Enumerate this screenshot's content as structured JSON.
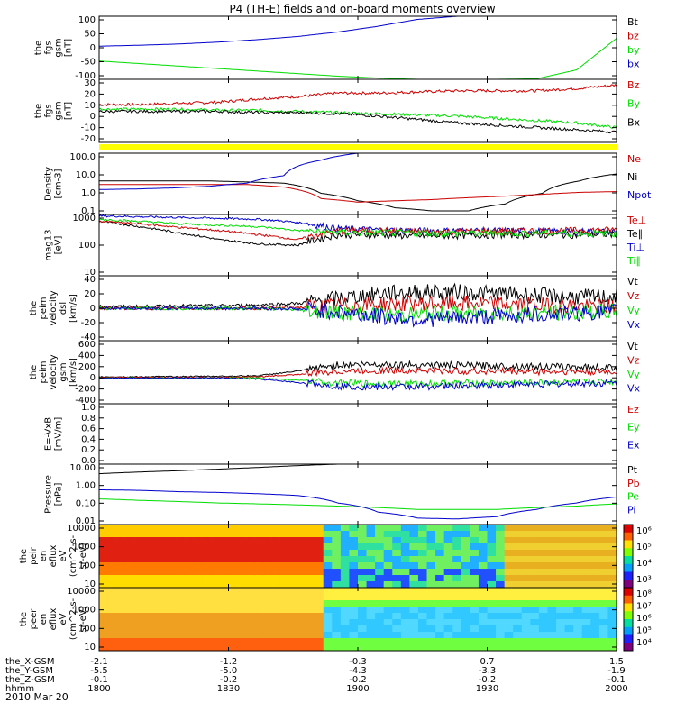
{
  "title": "P4 (TH-E) fields and on-board moments overview",
  "date": "2010 Mar 20",
  "colors": {
    "black": "#000000",
    "red": "#cc0000",
    "green": "#00dd00",
    "blue": "#0000cc",
    "yellow": "#ffff00"
  },
  "chart_data": [
    {
      "type": "line",
      "panel": "fgs-mag",
      "ylabel": [
        "the",
        "fgs",
        "gsm",
        "[nT]"
      ],
      "yticks": [
        "100",
        "50",
        "0",
        "-50",
        "-100"
      ],
      "ylim": [
        -100,
        100
      ],
      "legend": [
        "Bt",
        "bz",
        "by",
        "bx"
      ],
      "legend_colors": [
        "black",
        "red",
        "green",
        "blue"
      ],
      "series": [
        {
          "name": "bx",
          "color": "blue",
          "values": [
            5,
            8,
            12,
            18,
            26,
            36,
            50,
            68,
            90,
            100,
            100,
            100,
            100,
            100
          ]
        },
        {
          "name": "by",
          "color": "green",
          "values": [
            -42,
            -50,
            -58,
            -66,
            -74,
            -82,
            -90,
            -96,
            -100,
            -100,
            -100,
            -98,
            -70,
            30
          ]
        }
      ]
    },
    {
      "type": "line",
      "panel": "fgs-mag-zoom",
      "ylabel": [
        "the",
        "fgs",
        "gsm",
        "[nT]"
      ],
      "yticks": [
        "30",
        "20",
        "10",
        "0",
        "-10",
        "-20"
      ],
      "ylim": [
        -25,
        30
      ],
      "legend": [
        "Bz",
        "By",
        "Bx"
      ],
      "legend_colors": [
        "red",
        "green",
        "black"
      ],
      "series": [
        {
          "name": "Bz",
          "color": "red",
          "values": [
            8,
            8,
            9,
            10,
            13,
            15,
            18,
            18,
            19,
            20,
            20,
            20,
            22,
            25
          ]
        },
        {
          "name": "By",
          "color": "green",
          "values": [
            4,
            4,
            4,
            3,
            3,
            2,
            1,
            0,
            -1,
            -2,
            -4,
            -6,
            -8,
            -12
          ]
        },
        {
          "name": "Bx",
          "color": "black",
          "values": [
            2,
            2,
            2,
            2,
            1,
            1,
            0,
            -2,
            -5,
            -8,
            -10,
            -12,
            -14,
            -16
          ]
        }
      ]
    },
    {
      "type": "line",
      "panel": "density",
      "ylabel": [
        "Density",
        "[cm-3]"
      ],
      "yticks": [
        "100.0",
        "10.0",
        "1.0",
        "0.1"
      ],
      "scale": "log",
      "ylim": [
        0.05,
        150
      ],
      "legend": [
        "Ne",
        "Ni",
        "Npot"
      ],
      "legend_colors": [
        "red",
        "black",
        "blue"
      ],
      "series": [
        {
          "name": "Ni",
          "color": "black",
          "values": [
            4,
            4,
            4,
            4,
            3.5,
            3,
            0.8,
            0.3,
            0.12,
            0.08,
            0.08,
            0.2,
            0.8,
            4,
            10
          ]
        },
        {
          "name": "Ne",
          "color": "red",
          "values": [
            2.5,
            2.5,
            2.5,
            2.5,
            2.5,
            1.8,
            0.4,
            0.25,
            0.3,
            0.35,
            0.45,
            0.55,
            0.7,
            0.9,
            1
          ]
        },
        {
          "name": "Npot",
          "color": "blue",
          "values": [
            1.3,
            1.4,
            1.6,
            2,
            3,
            8,
            60,
            150,
            150,
            150,
            150,
            150,
            150,
            150,
            150
          ]
        }
      ]
    },
    {
      "type": "line",
      "panel": "temperature",
      "ylabel": [
        "mag13",
        "[eV]"
      ],
      "yticks": [
        "1000",
        "100",
        "10"
      ],
      "scale": "log",
      "ylim": [
        10,
        1000
      ],
      "legend": [
        "Te⊥",
        "Te∥",
        "Ti⊥",
        "Ti∥"
      ],
      "legend_colors": [
        "red",
        "black",
        "blue",
        "green"
      ],
      "series": [
        {
          "name": "Ti⊥",
          "color": "blue",
          "values": [
            900,
            850,
            800,
            750,
            700,
            550,
            350,
            320,
            300,
            300,
            300,
            290,
            280,
            280
          ]
        },
        {
          "name": "Te∥",
          "color": "black",
          "values": [
            600,
            400,
            250,
            150,
            110,
            100,
            220,
            220,
            200,
            210,
            220,
            220,
            220,
            230
          ]
        },
        {
          "name": "Te⊥",
          "color": "red",
          "values": [
            600,
            500,
            380,
            300,
            220,
            150,
            300,
            300,
            280,
            280,
            290,
            300,
            310,
            320
          ]
        },
        {
          "name": "Ti∥",
          "color": "green",
          "values": [
            700,
            600,
            500,
            450,
            400,
            300,
            260,
            260,
            250,
            250,
            250,
            250,
            250,
            240
          ]
        }
      ]
    },
    {
      "type": "line",
      "panel": "velocity-dsl",
      "ylabel": [
        "the",
        "peim",
        "velocity",
        "dsl",
        "[km/s]"
      ],
      "yticks": [
        "40",
        "20",
        "0",
        "-20",
        "-40"
      ],
      "ylim": [
        -40,
        40
      ],
      "legend": [
        "Vt",
        "Vz",
        "Vy",
        "Vx"
      ],
      "legend_colors": [
        "black",
        "red",
        "green",
        "blue"
      ],
      "series": [
        {
          "name": "Vt",
          "color": "black",
          "values": [
            2,
            2,
            3,
            3,
            4,
            6,
            12,
            18,
            20,
            20,
            18,
            16,
            14,
            14
          ]
        },
        {
          "name": "Vz",
          "color": "red",
          "values": [
            0,
            0,
            0,
            0,
            0,
            1,
            3,
            5,
            6,
            6,
            5,
            4,
            3,
            2
          ]
        },
        {
          "name": "Vy",
          "color": "green",
          "values": [
            0,
            0,
            0,
            0,
            0,
            -2,
            -5,
            -8,
            -8,
            -6,
            -6,
            -6,
            -5,
            -4
          ]
        },
        {
          "name": "Vx",
          "color": "blue",
          "values": [
            0,
            0,
            0,
            0,
            0,
            -1,
            -4,
            -10,
            -14,
            -12,
            -10,
            -8,
            -6,
            -4
          ]
        }
      ]
    },
    {
      "type": "line",
      "panel": "velocity-gsm",
      "ylabel": [
        "the",
        "peim",
        "velocity",
        "gsm",
        "[km/s]"
      ],
      "yticks": [
        "600",
        "400",
        "200",
        "0",
        "-200",
        "-400"
      ],
      "ylim": [
        -450,
        650
      ],
      "legend": [
        "Vt",
        "Vz",
        "Vy",
        "Vx"
      ],
      "legend_colors": [
        "black",
        "red",
        "green",
        "blue"
      ],
      "series": [
        {
          "name": "Vt",
          "color": "black",
          "values": [
            20,
            20,
            25,
            30,
            40,
            120,
            230,
            240,
            230,
            220,
            210,
            200,
            190,
            180
          ]
        },
        {
          "name": "Vz",
          "color": "red",
          "values": [
            10,
            10,
            10,
            10,
            20,
            60,
            120,
            130,
            130,
            120,
            120,
            110,
            110,
            100
          ]
        },
        {
          "name": "Vy",
          "color": "green",
          "values": [
            0,
            0,
            0,
            0,
            0,
            -40,
            -90,
            -100,
            -100,
            -90,
            -90,
            -80,
            -70,
            -60
          ]
        },
        {
          "name": "Vx",
          "color": "blue",
          "values": [
            0,
            0,
            0,
            0,
            -20,
            -80,
            -140,
            -160,
            -150,
            -140,
            -120,
            -110,
            -100,
            -90
          ]
        }
      ]
    },
    {
      "type": "line",
      "panel": "e-field",
      "ylabel": [
        "E=-VxB",
        "[mV/m]"
      ],
      "yticks": [
        "1.0",
        "0.8",
        "0.6",
        "0.4",
        "0.2",
        "0.0"
      ],
      "ylim": [
        0,
        1
      ],
      "legend": [
        "Ez",
        "Ey",
        "Ex"
      ],
      "legend_colors": [
        "red",
        "green",
        "blue"
      ],
      "series": []
    },
    {
      "type": "line",
      "panel": "pressure",
      "ylabel": [
        "Pressure",
        "[nPa]"
      ],
      "yticks": [
        "10.00",
        "1.00",
        "0.10",
        "0.01"
      ],
      "scale": "log",
      "ylim": [
        0.003,
        30
      ],
      "legend": [
        "Pt",
        "Pb",
        "Pe",
        "Pi"
      ],
      "legend_colors": [
        "black",
        "red",
        "green",
        "blue"
      ],
      "series": [
        {
          "name": "Pt",
          "color": "black",
          "values": [
            7,
            9,
            11,
            14,
            18,
            24,
            30,
            30,
            30,
            30,
            30,
            30,
            30,
            30
          ]
        },
        {
          "name": "Pi",
          "color": "blue",
          "values": [
            0.6,
            0.55,
            0.45,
            0.4,
            0.33,
            0.25,
            0.08,
            0.02,
            0.008,
            0.007,
            0.01,
            0.03,
            0.08,
            0.2
          ]
        },
        {
          "name": "Pe",
          "color": "green",
          "values": [
            0.15,
            0.12,
            0.1,
            0.08,
            0.07,
            0.06,
            0.05,
            0.04,
            0.03,
            0.03,
            0.03,
            0.04,
            0.05,
            0.07
          ]
        }
      ]
    },
    {
      "type": "heatmap",
      "panel": "ion-spectrogram",
      "ylabel": [
        "the",
        "peir",
        "en",
        "eflux",
        "eV",
        "(cm^2-s-",
        "sr-eV)"
      ],
      "yticks": [
        "10000",
        "1000",
        "100",
        "10"
      ],
      "colorbar_ticks": [
        "10⁶",
        "10⁵",
        "10⁴",
        "10³"
      ]
    },
    {
      "type": "heatmap",
      "panel": "electron-spectrogram",
      "ylabel": [
        "the",
        "peer",
        "en",
        "eflux",
        "eV",
        "(cm^2-s-",
        "sr-eV)"
      ],
      "yticks": [
        "10000",
        "1000",
        "100",
        "10"
      ],
      "colorbar_ticks": [
        "10⁸",
        "10⁷",
        "10⁶",
        "10⁵",
        "10⁴"
      ]
    }
  ],
  "xaxis": {
    "row_labels": [
      "the_X-GSM",
      "the_Y-GSM",
      "the_Z-GSM",
      "hhmm"
    ],
    "columns": [
      [
        "-2.1",
        "-5.5",
        "-0.1",
        "1800"
      ],
      [
        "-1.2",
        "-5.0",
        "-0.2",
        "1830"
      ],
      [
        "-0.3",
        "-4.3",
        "-0.2",
        "1900"
      ],
      [
        "0.7",
        "-3.3",
        "-0.2",
        "1930"
      ],
      [
        "1.5",
        "-1.9",
        "-0.1",
        "2000"
      ]
    ]
  }
}
